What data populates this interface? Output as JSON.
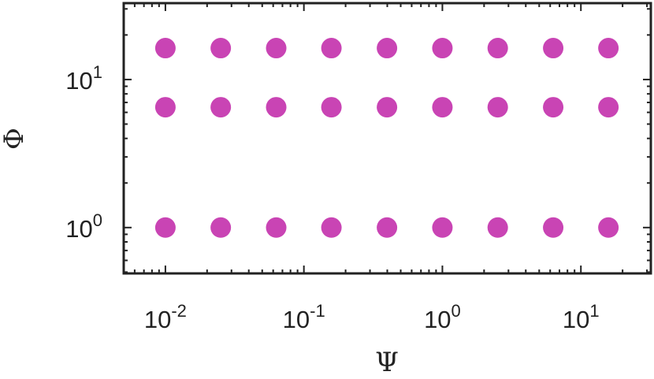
{
  "chart_data": {
    "type": "scatter",
    "x_label": "Ψ",
    "y_label": "Φ",
    "x_scale": "log",
    "y_scale": "log",
    "xlim": [
      0.005,
      32
    ],
    "ylim": [
      0.49,
      32.8
    ],
    "xticks": [
      {
        "value": 0.01,
        "label": "10^-2"
      },
      {
        "value": 0.1,
        "label": "10^-1"
      },
      {
        "value": 1,
        "label": "10^0"
      },
      {
        "value": 10,
        "label": "10^1"
      }
    ],
    "yticks": [
      {
        "value": 1,
        "label": "10^0"
      },
      {
        "value": 10,
        "label": "10^1"
      }
    ],
    "series": [
      {
        "color": "#c944b4",
        "x": [
          0.01,
          0.0251,
          0.0631,
          0.158,
          0.398,
          1,
          2.51,
          6.31,
          15.8
        ],
        "values": [
          1,
          1,
          1,
          1,
          1,
          1,
          1,
          1,
          1
        ]
      },
      {
        "color": "#c944b4",
        "x": [
          0.01,
          0.0251,
          0.0631,
          0.158,
          0.398,
          1,
          2.51,
          6.31,
          15.8
        ],
        "values": [
          6.5,
          6.5,
          6.5,
          6.5,
          6.5,
          6.5,
          6.5,
          6.5,
          6.5
        ]
      },
      {
        "color": "#c944b4",
        "x": [
          0.01,
          0.0251,
          0.0631,
          0.158,
          0.398,
          1,
          2.51,
          6.31,
          15.8
        ],
        "values": [
          16.3,
          16.3,
          16.3,
          16.3,
          16.3,
          16.3,
          16.3,
          16.3,
          16.3
        ]
      }
    ]
  }
}
